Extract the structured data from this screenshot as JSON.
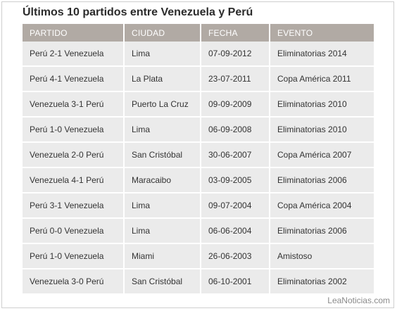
{
  "title": "Últimos 10 partidos entre Venezuela y Perú",
  "headers": [
    "PARTIDO",
    "CIUDAD",
    "FECHA",
    "EVENTO"
  ],
  "rows": [
    [
      "Perú 2-1 Venezuela",
      "Lima",
      "07-09-2012",
      "Eliminatorias 2014"
    ],
    [
      "Perú 4-1 Venezuela",
      "La Plata",
      "23-07-2011",
      "Copa América 2011"
    ],
    [
      "Venezuela 3-1 Perú",
      "Puerto La Cruz",
      "09-09-2009",
      "Eliminatorias 2010"
    ],
    [
      "Perú 1-0 Venezuela",
      "Lima",
      "06-09-2008",
      "Eliminatorias 2010"
    ],
    [
      "Venezuela 2-0 Perú",
      "San Cristóbal",
      "30-06-2007",
      "Copa América 2007"
    ],
    [
      "Venezuela 4-1 Perú",
      "Maracaibo",
      "03-09-2005",
      "Eliminatorias 2006"
    ],
    [
      "Perú 3-1 Venezuela",
      "Lima",
      "09-07-2004",
      "Copa América 2004"
    ],
    [
      "Perú 0-0 Venezuela",
      "Lima",
      "06-06-2004",
      "Eliminatorias 2006"
    ],
    [
      "Perú 1-0 Venezuela",
      "Miami",
      "26-06-2003",
      "Amistoso"
    ],
    [
      "Venezuela 3-0 Perú",
      "San Cristóbal",
      "06-10-2001",
      "Eliminatorias 2002"
    ]
  ],
  "watermark": "LeaNoticias.com"
}
